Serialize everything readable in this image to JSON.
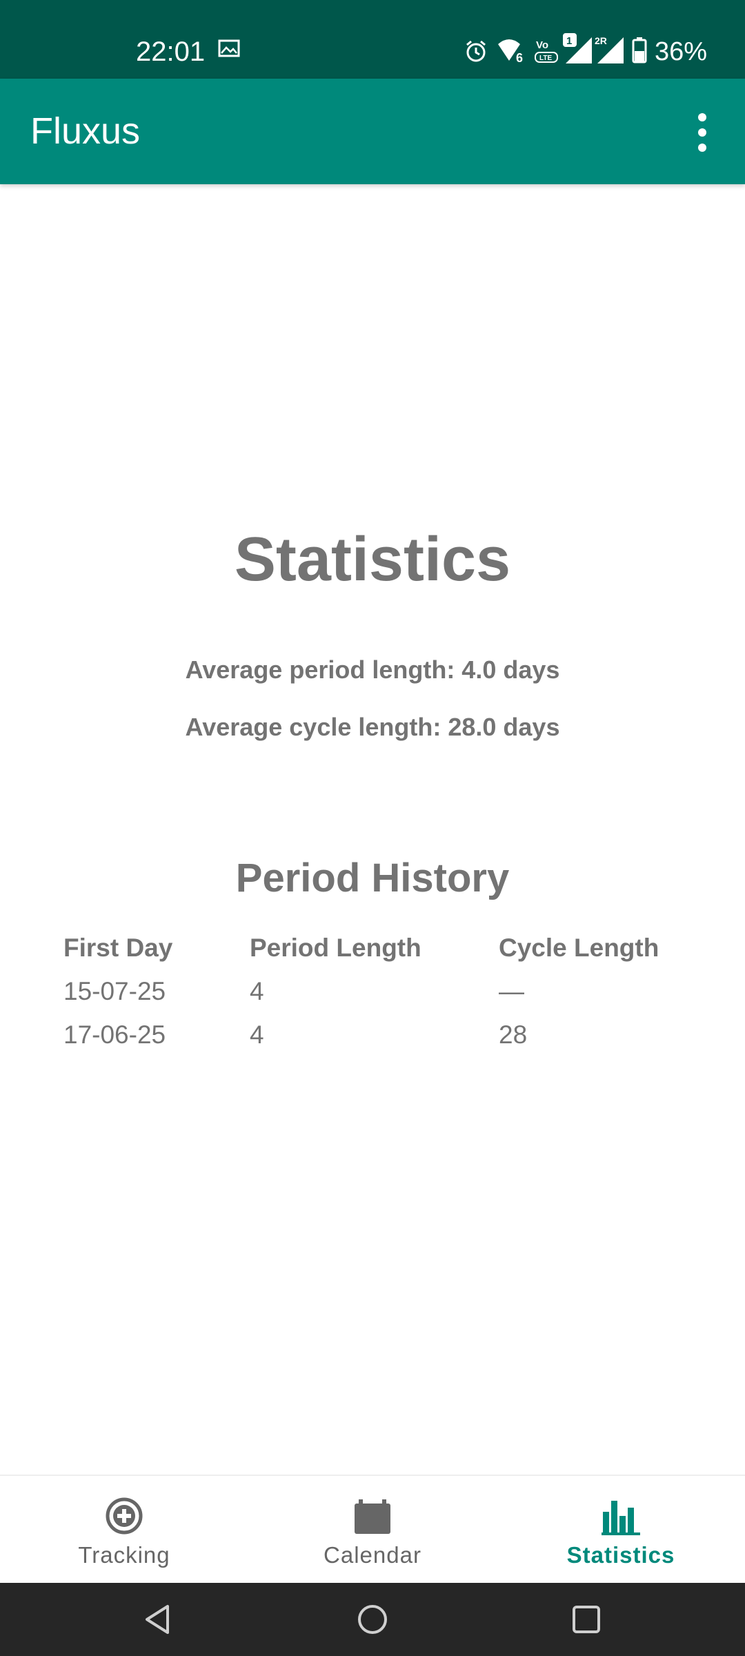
{
  "status_bar": {
    "time": "22:01",
    "battery": "36%",
    "icons": [
      "image-icon",
      "alarm-icon",
      "wifi-6-icon",
      "volte-icon",
      "signal-1-icon",
      "signal-2r-icon",
      "battery-icon"
    ]
  },
  "app_bar": {
    "title": "Fluxus",
    "menu_icon": "more-vert-icon"
  },
  "statistics": {
    "title": "Statistics",
    "avg_period": "Average period length: 4.0 days",
    "avg_cycle": "Average cycle length: 28.0 days"
  },
  "history": {
    "title": "Period History",
    "headers": [
      "First Day",
      "Period Length",
      "Cycle Length"
    ],
    "rows": [
      [
        "15-07-25",
        "4",
        "—"
      ],
      [
        "17-06-25",
        "4",
        "28"
      ]
    ]
  },
  "bottom_nav": {
    "items": [
      {
        "label": "Tracking",
        "icon": "add-circle-icon",
        "active": false
      },
      {
        "label": "Calendar",
        "icon": "calendar-icon",
        "active": false
      },
      {
        "label": "Statistics",
        "icon": "bar-chart-icon",
        "active": true
      }
    ]
  },
  "colors": {
    "status_bar": "#00574b",
    "app_bar": "#00897b",
    "accent": "#00897b",
    "text_gray": "#737373",
    "system_nav": "#262626"
  }
}
